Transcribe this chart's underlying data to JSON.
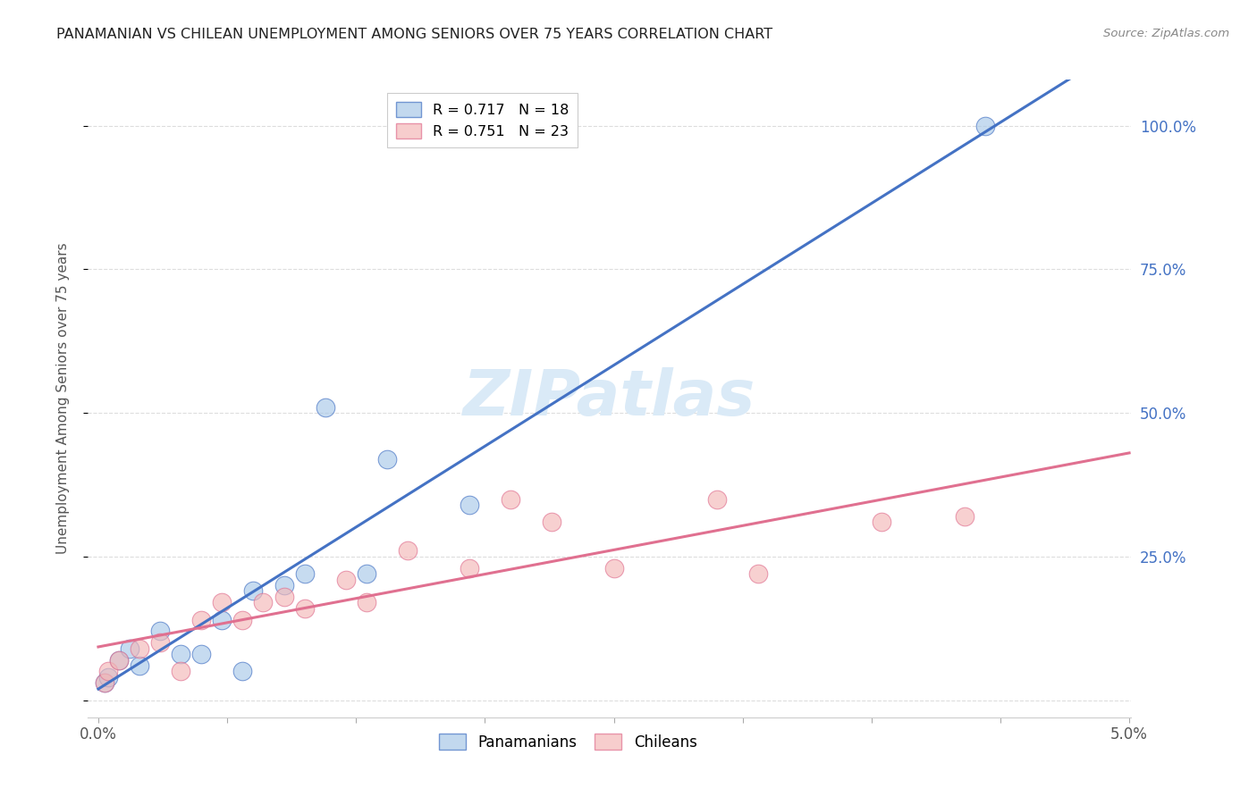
{
  "title": "PANAMANIAN VS CHILEAN UNEMPLOYMENT AMONG SENIORS OVER 75 YEARS CORRELATION CHART",
  "source": "Source: ZipAtlas.com",
  "ylabel": "Unemployment Among Seniors over 75 years",
  "yticks": [
    0.0,
    0.25,
    0.5,
    0.75,
    1.0
  ],
  "ytick_labels": [
    "",
    "25.0%",
    "50.0%",
    "75.0%",
    "100.0%"
  ],
  "xticks": [
    0.0,
    0.00625,
    0.0125,
    0.01875,
    0.025,
    0.03125,
    0.0375,
    0.04375,
    0.05
  ],
  "xmax": 0.05,
  "ymax": 1.08,
  "ymin": -0.03,
  "legend_r_pan": "R = 0.717",
  "legend_n_pan": "N = 18",
  "legend_r_chi": "R = 0.751",
  "legend_n_chi": "N = 23",
  "pan_color": "#a8c8e8",
  "chi_color": "#f4b8b8",
  "pan_line_color": "#4472c4",
  "chi_line_color": "#e07090",
  "watermark_color": "#daeaf7",
  "background_color": "#ffffff",
  "grid_color": "#dddddd",
  "pan_points_x": [
    0.0003,
    0.0005,
    0.001,
    0.0015,
    0.002,
    0.003,
    0.004,
    0.005,
    0.006,
    0.007,
    0.0075,
    0.009,
    0.01,
    0.011,
    0.013,
    0.014,
    0.018,
    0.043
  ],
  "pan_points_y": [
    0.03,
    0.04,
    0.07,
    0.09,
    0.06,
    0.12,
    0.08,
    0.08,
    0.14,
    0.05,
    0.19,
    0.2,
    0.22,
    0.51,
    0.22,
    0.42,
    0.34,
    1.0
  ],
  "chi_points_x": [
    0.0003,
    0.0005,
    0.001,
    0.002,
    0.003,
    0.004,
    0.005,
    0.006,
    0.007,
    0.008,
    0.009,
    0.01,
    0.012,
    0.013,
    0.015,
    0.018,
    0.02,
    0.022,
    0.025,
    0.03,
    0.032,
    0.038,
    0.042
  ],
  "chi_points_y": [
    0.03,
    0.05,
    0.07,
    0.09,
    0.1,
    0.05,
    0.14,
    0.17,
    0.14,
    0.17,
    0.18,
    0.16,
    0.21,
    0.17,
    0.26,
    0.23,
    0.35,
    0.31,
    0.23,
    0.35,
    0.22,
    0.31,
    0.32
  ]
}
